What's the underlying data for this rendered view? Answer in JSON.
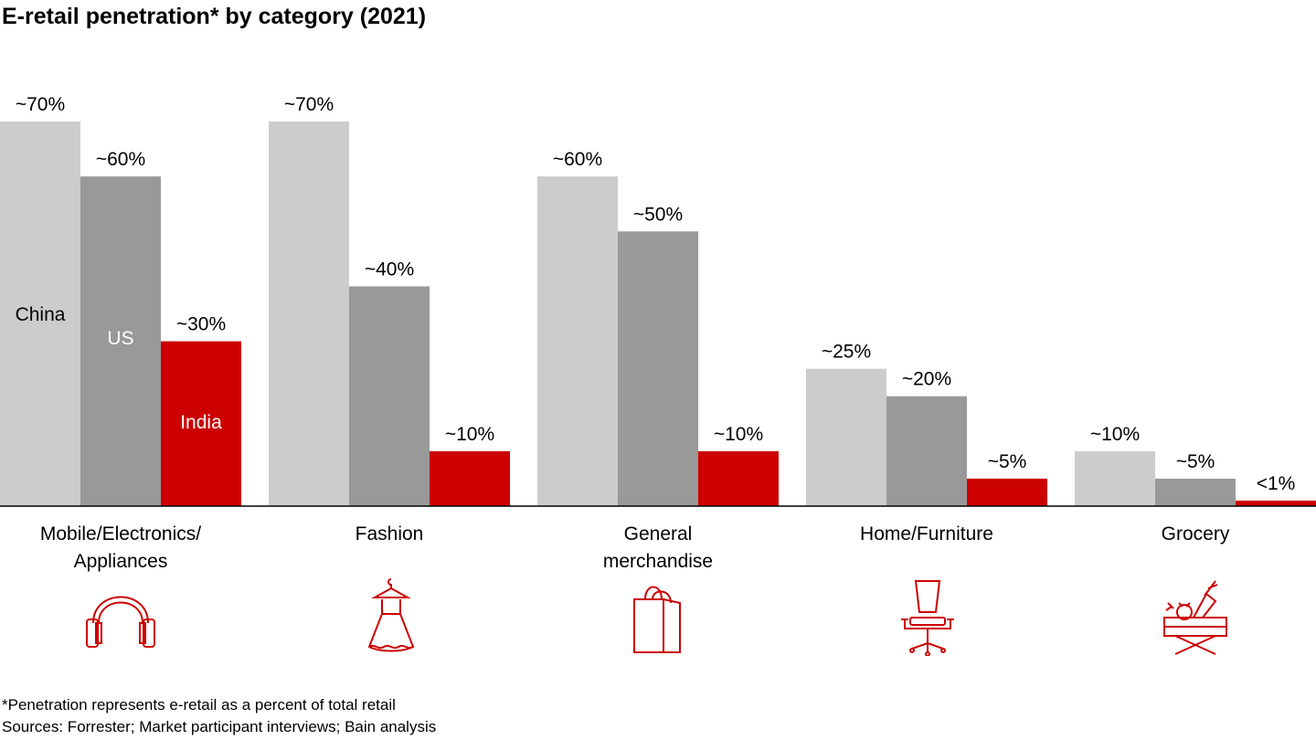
{
  "title": "E-retail penetration* by category (2021)",
  "chart_data": {
    "type": "bar",
    "categories": [
      "Mobile/Electronics/ Appliances",
      "Fashion",
      "General merchandise",
      "Home/Furniture",
      "Grocery"
    ],
    "category_lines": [
      [
        "Mobile/Electronics/",
        "Appliances"
      ],
      [
        "Fashion"
      ],
      [
        "General",
        "merchandise"
      ],
      [
        "Home/Furniture"
      ],
      [
        "Grocery"
      ]
    ],
    "series": [
      {
        "name": "China",
        "values": [
          70,
          70,
          60,
          25,
          10
        ],
        "labels": [
          "~70%",
          "~70%",
          "~60%",
          "~25%",
          "~10%"
        ],
        "color": "#cccccc"
      },
      {
        "name": "US",
        "values": [
          60,
          40,
          50,
          20,
          5
        ],
        "labels": [
          "~60%",
          "~40%",
          "~50%",
          "~20%",
          "~5%"
        ],
        "color": "#999999"
      },
      {
        "name": "India",
        "values": [
          30,
          10,
          10,
          5,
          1
        ],
        "labels": [
          "~30%",
          "~10%",
          "~10%",
          "~5%",
          "<1%"
        ],
        "color": "#cc0000"
      }
    ],
    "ylim": [
      0,
      70
    ],
    "legend": "inline-in-first-group",
    "grid": false
  },
  "icons": [
    "headphones-icon",
    "dress-icon",
    "shopping-bag-icon",
    "office-chair-icon",
    "grocery-crate-icon"
  ],
  "footnotes": [
    "*Penetration represents e-retail as a percent of total retail",
    "Sources: Forrester; Market participant interviews; Bain analysis"
  ]
}
